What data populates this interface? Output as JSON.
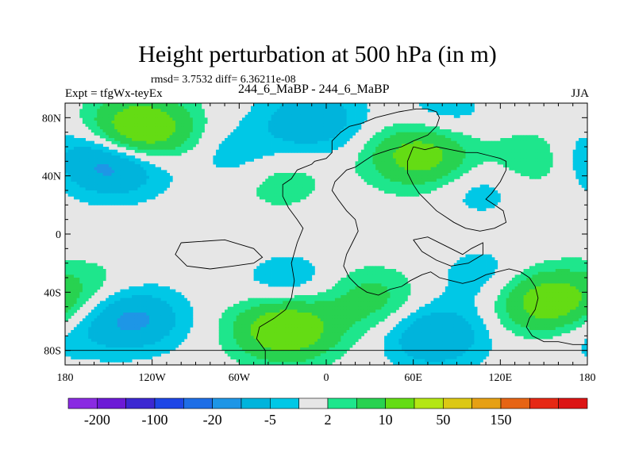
{
  "figure": {
    "title": "Height perturbation at 500 hPa (in m)",
    "stats": "rmsd= 3.7532 diff= 6.36211e-08",
    "left_label": "Expt = tfgWx-teyEx",
    "center_label": "244_6_MaBP - 244_6_MaBP",
    "right_label": "JJA"
  },
  "chart_data": {
    "type": "heatmap",
    "title": "Height perturbation at 500 hPa (in m)",
    "xlim": [
      -180,
      180
    ],
    "ylim": [
      -90,
      90
    ],
    "x_ticks": [
      {
        "value": -180,
        "label": "180"
      },
      {
        "value": -120,
        "label": "120W"
      },
      {
        "value": -60,
        "label": "60W"
      },
      {
        "value": 0,
        "label": "0"
      },
      {
        "value": 60,
        "label": "60E"
      },
      {
        "value": 120,
        "label": "120E"
      },
      {
        "value": 180,
        "label": "180"
      }
    ],
    "y_ticks": [
      {
        "value": 80,
        "label": "80N"
      },
      {
        "value": 40,
        "label": "40N"
      },
      {
        "value": 0,
        "label": "0"
      },
      {
        "value": -40,
        "label": "40S"
      },
      {
        "value": -80,
        "label": "80S"
      }
    ],
    "background_color": "#e6e6e6",
    "levels": [
      -200,
      -150,
      -100,
      -50,
      -20,
      -10,
      -5,
      -2,
      2,
      5,
      10,
      20,
      50,
      100,
      150,
      200
    ],
    "colors": [
      "#8a2be2",
      "#6c1ad6",
      "#3c28d2",
      "#1e46e6",
      "#1e6ee6",
      "#1e96e6",
      "#00b4dc",
      "#00c8e6",
      "#e6e6e6",
      "#1ee68c",
      "#28d250",
      "#64dc14",
      "#b4e614",
      "#dcc814",
      "#e6a014",
      "#e66414",
      "#e62814",
      "#dc1414"
    ],
    "colorbar_labels": [
      {
        "level": -200,
        "label": "-200"
      },
      {
        "level": -100,
        "label": "-100"
      },
      {
        "level": -20,
        "label": "-20"
      },
      {
        "level": -5,
        "label": "-5"
      },
      {
        "level": 2,
        "label": "2"
      },
      {
        "level": 10,
        "label": "10"
      },
      {
        "level": 50,
        "label": "50"
      },
      {
        "level": 150,
        "label": "150"
      }
    ],
    "anomalies": [
      {
        "name": "arctic-pacific-positive",
        "lon": -128,
        "lat": 72,
        "value": 18
      },
      {
        "name": "arctic-atlantic-negative",
        "lon": -10,
        "lat": 78,
        "value": -9
      },
      {
        "name": "siberia-negative",
        "lon": 80,
        "lat": 82,
        "value": -4
      },
      {
        "name": "north-pacific-negative",
        "lon": -145,
        "lat": 47,
        "value": -11
      },
      {
        "name": "north-pacific-west-negative",
        "lon": -172,
        "lat": 56,
        "value": -4
      },
      {
        "name": "greenland-west-negative",
        "lon": -60,
        "lat": 54,
        "value": -4
      },
      {
        "name": "north-atlantic-positive",
        "lon": -33,
        "lat": 37,
        "value": 4
      },
      {
        "name": "eurasia-positive",
        "lon": 65,
        "lat": 54,
        "value": 14
      },
      {
        "name": "east-asia-positive",
        "lon": 142,
        "lat": 51,
        "value": 5
      },
      {
        "name": "central-asia-negative",
        "lon": 106,
        "lat": 33,
        "value": -4
      },
      {
        "name": "south-pacific-negative",
        "lon": -135,
        "lat": -58,
        "value": -12
      },
      {
        "name": "southern-ocean-pacific-positive",
        "lon": -160,
        "lat": -39,
        "value": 4
      },
      {
        "name": "south-atlantic-positive",
        "lon": -28,
        "lat": -65,
        "value": 17
      },
      {
        "name": "south-atlantic-negative",
        "lon": -25,
        "lat": -35,
        "value": -5
      },
      {
        "name": "indian-ocean-positive",
        "lon": 30,
        "lat": -45,
        "value": 7
      },
      {
        "name": "southern-indian-negative",
        "lon": 75,
        "lat": -70,
        "value": -10
      },
      {
        "name": "southwest-indian-negative",
        "lon": 110,
        "lat": -30,
        "value": -4
      },
      {
        "name": "australia-positive",
        "lon": 153,
        "lat": -47,
        "value": 15
      },
      {
        "name": "antarctic-negative",
        "lon": 176,
        "lat": -70,
        "value": -3
      }
    ]
  }
}
